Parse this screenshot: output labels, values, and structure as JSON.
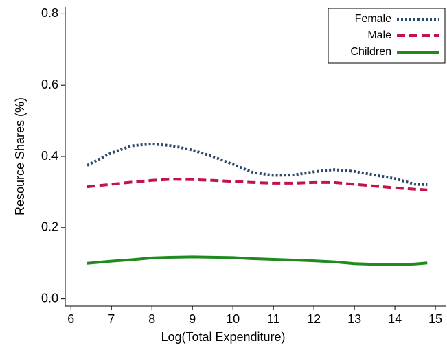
{
  "chart_data": {
    "type": "line",
    "x_label": "Log(Total Expenditure)",
    "y_label": "Resource Shares (%)",
    "x": [
      6.4,
      7,
      7.5,
      8,
      8.5,
      9,
      9.5,
      10,
      10.5,
      11,
      11.5,
      12,
      12.5,
      13,
      13.5,
      14,
      14.5,
      14.8
    ],
    "series": [
      {
        "name": "Female",
        "color": "#2b4a6b",
        "style": "dotted",
        "values": [
          0.375,
          0.41,
          0.43,
          0.435,
          0.43,
          0.418,
          0.4,
          0.378,
          0.355,
          0.347,
          0.348,
          0.357,
          0.363,
          0.358,
          0.348,
          0.338,
          0.322,
          0.321
        ]
      },
      {
        "name": "Male",
        "color": "#c0144b",
        "style": "dashed",
        "values": [
          0.315,
          0.322,
          0.328,
          0.333,
          0.336,
          0.335,
          0.333,
          0.33,
          0.327,
          0.325,
          0.325,
          0.327,
          0.327,
          0.322,
          0.317,
          0.312,
          0.308,
          0.306
        ]
      },
      {
        "name": "Children",
        "color": "#1f8a1f",
        "style": "solid",
        "values": [
          0.1,
          0.106,
          0.11,
          0.115,
          0.117,
          0.118,
          0.117,
          0.116,
          0.113,
          0.111,
          0.109,
          0.107,
          0.104,
          0.099,
          0.097,
          0.096,
          0.098,
          0.101
        ]
      }
    ],
    "xlim": [
      5.86,
      15.27
    ],
    "xticks": [
      6,
      7,
      8,
      9,
      10,
      11,
      12,
      13,
      14,
      15
    ],
    "ylim": [
      -0.02,
      0.82
    ],
    "yticks": [
      {
        "value": 0,
        "label": "0.0"
      },
      0.2,
      0.4,
      0.6,
      0.8
    ],
    "legend": "upper right"
  }
}
